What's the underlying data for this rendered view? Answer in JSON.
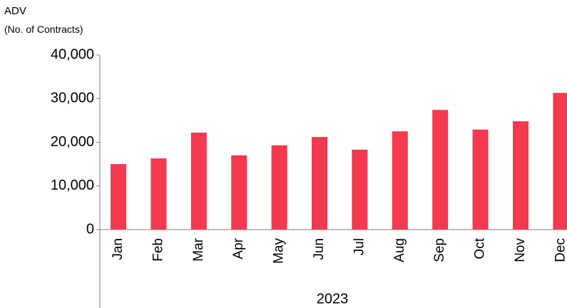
{
  "chart_data": {
    "type": "bar",
    "title": "ADV",
    "subtitle": "(No. of Contracts)",
    "categories": [
      "Jan",
      "Feb",
      "Mar",
      "Apr",
      "May",
      "Jun",
      "Jul",
      "Aug",
      "Sep",
      "Oct",
      "Nov",
      "Dec"
    ],
    "category_group": "2023",
    "values": [
      15000,
      16300,
      22200,
      17000,
      19300,
      21200,
      18300,
      22500,
      27400,
      22900,
      24800,
      31300
    ],
    "color": "#f5394e",
    "ylim": [
      0,
      40000
    ],
    "yticks": [
      0,
      {
        "value": 10000,
        "label": "10,000"
      },
      {
        "value": 20000,
        "label": "20,000"
      },
      {
        "value": 30000,
        "label": "30,000"
      },
      {
        "value": 40000,
        "label": "40,000"
      }
    ],
    "grid": false
  }
}
